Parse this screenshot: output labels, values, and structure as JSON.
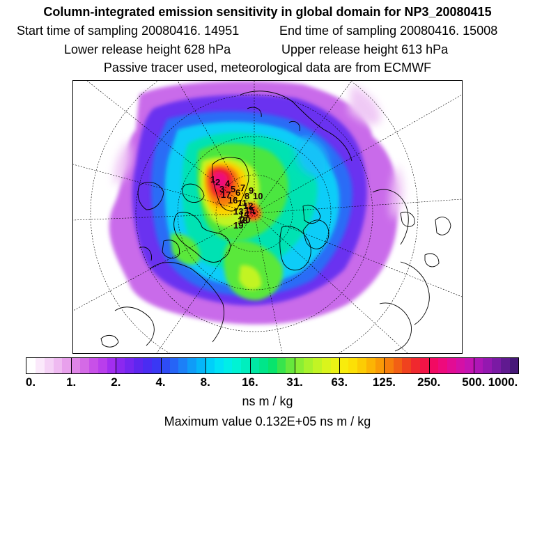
{
  "header": {
    "title": "Column-integrated emission sensitivity in global domain for NP3_20080415",
    "start_sampling": "Start time of sampling 20080416. 14951",
    "end_sampling": "End time of sampling 20080416. 15008",
    "lower_release": "Lower release height  628 hPa",
    "upper_release": "Upper release height  613 hPa",
    "tracer_info": "Passive tracer used, meteorological data are from ECMWF"
  },
  "map": {
    "projection": "north-polar-stereographic",
    "release_labels": [
      "1",
      "2",
      "3",
      "4",
      "5",
      "6",
      "7",
      "8",
      "9",
      "10",
      "11",
      "12",
      "13",
      "14",
      "15",
      "16",
      "17",
      "18",
      "19",
      "20"
    ],
    "colors": {
      "background": "#ffffff",
      "coast": "#000000",
      "grid": "#000000"
    }
  },
  "colorbar": {
    "tick_labels": [
      "0.",
      "1.",
      "2.",
      "4.",
      "8.",
      "16.",
      "31.",
      "63.",
      "125.",
      "250.",
      "500.",
      "1000."
    ],
    "colors": [
      "#ffffff",
      "#fbe9fb",
      "#f5d2f6",
      "#efbaf1",
      "#e8a0ec",
      "#df85e7",
      "#d46ae6",
      "#c850e8",
      "#b93eec",
      "#a22ef0",
      "#8b28f0",
      "#7526f0",
      "#5e26ef",
      "#4a2cf2",
      "#3a38f4",
      "#2e4cf5",
      "#2664f6",
      "#1c80f7",
      "#0f9cf8",
      "#05b6f9",
      "#00cffa",
      "#00e2f6",
      "#00eee8",
      "#00f3d4",
      "#00eebe",
      "#00e8a4",
      "#00e68a",
      "#08e46c",
      "#38e44c",
      "#66e83c",
      "#8aee34",
      "#a8f22c",
      "#c2f424",
      "#daf41c",
      "#ecf214",
      "#f8ec0c",
      "#fce006",
      "#fccc04",
      "#fcb404",
      "#fa9a06",
      "#f67e0c",
      "#f26014",
      "#f0421e",
      "#f0282e",
      "#f21446",
      "#f20a62",
      "#ee0a7c",
      "#e20c94",
      "#d410a6",
      "#c414b2",
      "#ae16b6",
      "#9418b0",
      "#7a1aa4",
      "#601a90",
      "#461878"
    ],
    "unit": "ns m / kg",
    "max_value": "Maximum value  0.132E+05 ns m / kg"
  }
}
